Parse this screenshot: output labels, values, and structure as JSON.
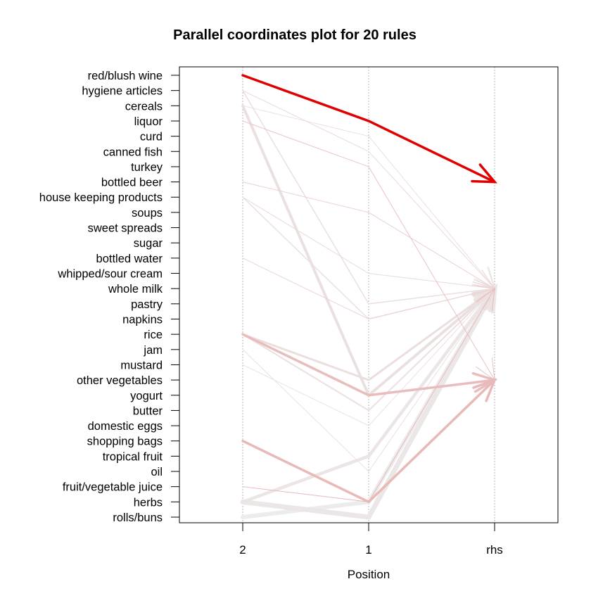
{
  "chart_data": {
    "type": "parallel-coordinates",
    "title": "Parallel coordinates plot for 20 rules",
    "xlabel": "Position",
    "x_ticks": [
      "2",
      "1",
      "rhs"
    ],
    "items": [
      "red/blush wine",
      "hygiene articles",
      "cereals",
      "liquor",
      "curd",
      "canned fish",
      "turkey",
      "bottled beer",
      "house keeping products",
      "soups",
      "sweet spreads",
      "sugar",
      "bottled water",
      "whipped/sour cream",
      "whole milk",
      "pastry",
      "napkins",
      "rice",
      "jam",
      "mustard",
      "other vegetables",
      "yogurt",
      "butter",
      "domestic eggs",
      "shopping bags",
      "tropical fruit",
      "oil",
      "fruit/vegetable juice",
      "herbs",
      "rolls/buns"
    ],
    "grid": true,
    "color_scale": {
      "high": "#e00000",
      "low": "#ececec"
    },
    "rules": [
      {
        "path": [
          "red/blush wine",
          "liquor",
          "bottled beer"
        ],
        "width": 3.5,
        "shade": 1.0
      },
      {
        "path": [
          "herbs",
          "rolls/buns",
          "whole milk"
        ],
        "width": 7,
        "shade": 0.02
      },
      {
        "path": [
          "rolls/buns",
          "herbs",
          "whole milk"
        ],
        "width": 6,
        "shade": 0.0
      },
      {
        "path": [
          "herbs",
          "tropical fruit",
          "whole milk"
        ],
        "width": 4.5,
        "shade": 0.03
      },
      {
        "path": [
          "cereals",
          "yogurt",
          "whole milk"
        ],
        "width": 4,
        "shade": 0.05
      },
      {
        "path": [
          "rice",
          "other vegetables",
          "whole milk"
        ],
        "width": 3,
        "shade": 0.06
      },
      {
        "path": [
          "shopping bags",
          "herbs",
          "other vegetables"
        ],
        "width": 3.5,
        "shade": 0.22
      },
      {
        "path": [
          "rice",
          "yogurt",
          "other vegetables"
        ],
        "width": 3.5,
        "shade": 0.2
      },
      {
        "path": [
          "rice",
          "butter",
          "whole milk"
        ],
        "width": 2,
        "shade": 0.05
      },
      {
        "path": [
          "house keeping products",
          "napkins",
          "whole milk"
        ],
        "width": 1.5,
        "shade": 0.05
      },
      {
        "path": [
          "hygiene articles",
          "pastry",
          "whole milk"
        ],
        "width": 1.5,
        "shade": 0.06
      },
      {
        "path": [
          "house keeping products",
          "whipped/sour cream",
          "whole milk"
        ],
        "width": 1,
        "shade": 0.08
      },
      {
        "path": [
          "bottled beer",
          "soups",
          "whole milk"
        ],
        "width": 1,
        "shade": 0.12
      },
      {
        "path": [
          "liquor",
          "turkey",
          "other vegetables"
        ],
        "width": 1,
        "shade": 0.18
      },
      {
        "path": [
          "cereals",
          "curd",
          "whole milk"
        ],
        "width": 1,
        "shade": 0.05
      },
      {
        "path": [
          "hygiene articles",
          "canned fish",
          "whole milk"
        ],
        "width": 1,
        "shade": 0.08
      },
      {
        "path": [
          "fruit/vegetable juice",
          "herbs",
          "whole milk"
        ],
        "width": 1,
        "shade": 0.22
      },
      {
        "path": [
          "bottled water",
          "napkins",
          "whole milk"
        ],
        "width": 1,
        "shade": 0.1
      },
      {
        "path": [
          "mustard",
          "domestic eggs",
          "whole milk"
        ],
        "width": 1,
        "shade": 0.05
      },
      {
        "path": [
          "jam",
          "oil",
          "whole milk"
        ],
        "width": 1,
        "shade": 0.05
      }
    ]
  }
}
